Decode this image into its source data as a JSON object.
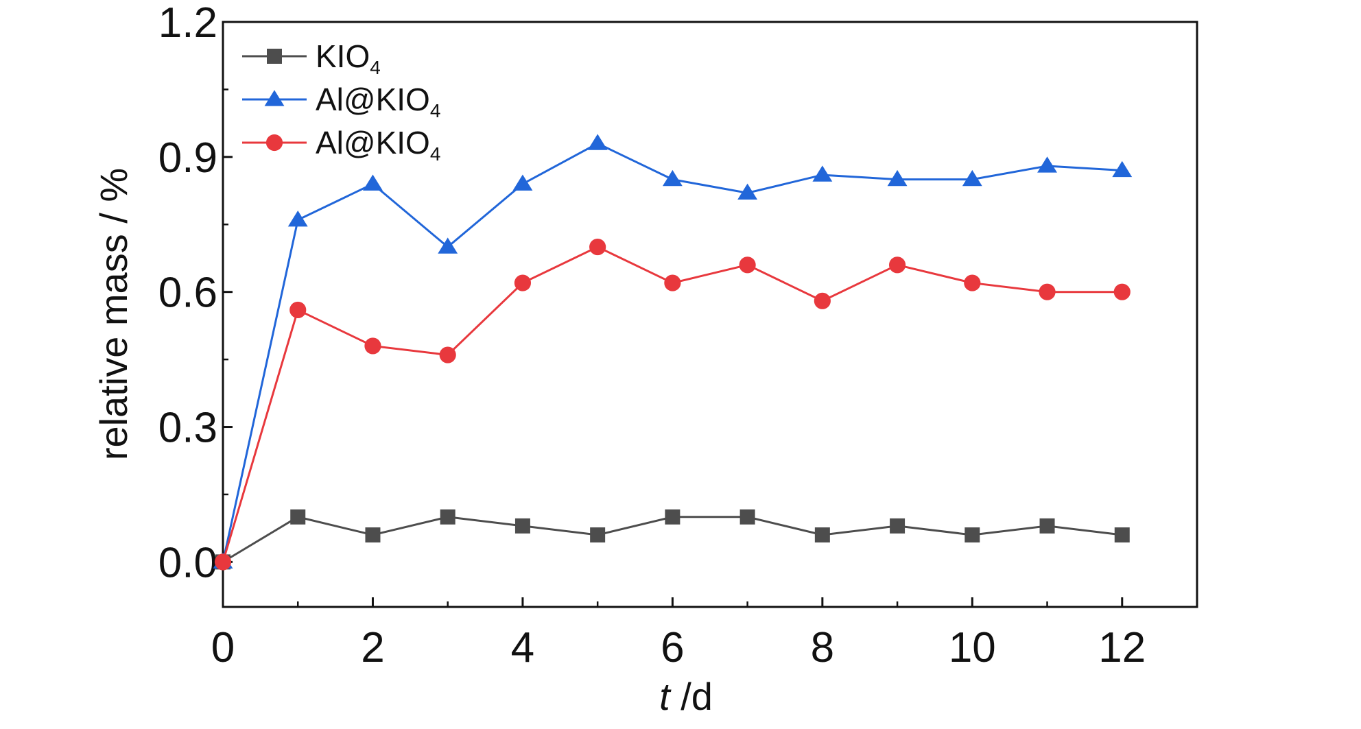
{
  "chart_data": {
    "type": "line",
    "xlabel_italic": "t",
    "xlabel_rest": " /d",
    "ylabel": "relative mass / %",
    "xlim": [
      0,
      13
    ],
    "ylim": [
      -0.1,
      1.2
    ],
    "xticks": [
      0,
      2,
      4,
      6,
      8,
      10,
      12
    ],
    "xtick_labels": [
      "0",
      "2",
      "4",
      "6",
      "8",
      "10",
      "12"
    ],
    "xminor_ticks": [
      1,
      3,
      5,
      7,
      9,
      11
    ],
    "yticks": [
      0.0,
      0.3,
      0.6,
      0.9,
      1.2
    ],
    "ytick_labels": [
      "0.0",
      "0.3",
      "0.6",
      "0.9",
      "1.2"
    ],
    "yminor_ticks": [
      0.15,
      0.45,
      0.75,
      1.05
    ],
    "grid": false,
    "legend_position": "top-left",
    "x": [
      0,
      1,
      2,
      3,
      4,
      5,
      6,
      7,
      8,
      9,
      10,
      11,
      12
    ],
    "series": [
      {
        "name_main": "KIO",
        "name_sub": "4",
        "color": "#4d4d4d",
        "marker": "square",
        "values": [
          0.0,
          0.1,
          0.06,
          0.1,
          0.08,
          0.06,
          0.1,
          0.1,
          0.06,
          0.08,
          0.06,
          0.08,
          0.06
        ]
      },
      {
        "name_main": "Al@KIO",
        "name_sub": "4",
        "color": "#2166d9",
        "marker": "triangle",
        "values": [
          0.0,
          0.76,
          0.84,
          0.7,
          0.84,
          0.93,
          0.85,
          0.82,
          0.86,
          0.85,
          0.85,
          0.88,
          0.87
        ]
      },
      {
        "name_main": "Al@KIO",
        "name_sub": "4",
        "color": "#e8383d",
        "marker": "circle",
        "values": [
          0.0,
          0.56,
          0.48,
          0.46,
          0.62,
          0.7,
          0.62,
          0.66,
          0.58,
          0.66,
          0.62,
          0.6,
          0.6
        ]
      }
    ]
  }
}
